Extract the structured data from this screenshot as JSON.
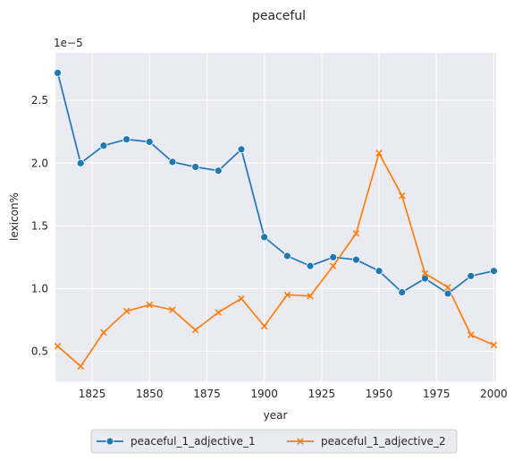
{
  "chart_data": {
    "type": "line",
    "title": "peaceful",
    "xlabel": "year",
    "ylabel": "lexicon%",
    "y_offset_label": "1e−5",
    "x": [
      1810,
      1820,
      1830,
      1840,
      1850,
      1860,
      1870,
      1880,
      1890,
      1900,
      1910,
      1920,
      1930,
      1940,
      1950,
      1960,
      1970,
      1980,
      1990,
      2000
    ],
    "xlim": [
      1809,
      2001
    ],
    "ylim": [
      0.26,
      2.88
    ],
    "x_ticks": [
      1825,
      1850,
      1875,
      1900,
      1925,
      1950,
      1975,
      2000
    ],
    "x_tick_labels": [
      "1825",
      "1850",
      "1875",
      "1900",
      "1925",
      "1950",
      "1975",
      "2000"
    ],
    "y_ticks": [
      0.5,
      1.0,
      1.5,
      2.0,
      2.5
    ],
    "y_tick_labels": [
      "0.5",
      "1.0",
      "1.5",
      "2.0",
      "2.5"
    ],
    "grid": true,
    "legend_position": "bottom-center",
    "series": [
      {
        "name": "peaceful_1_adjective_1",
        "color": "#1f77b4",
        "marker": "circle",
        "values": [
          2.72,
          2.0,
          2.14,
          2.19,
          2.17,
          2.01,
          1.97,
          1.94,
          2.11,
          1.41,
          1.26,
          1.18,
          1.25,
          1.23,
          1.14,
          0.97,
          1.08,
          0.96,
          1.1,
          1.14
        ]
      },
      {
        "name": "peaceful_1_adjective_2",
        "color": "#ff7f0e",
        "marker": "x",
        "values": [
          0.54,
          0.38,
          0.65,
          0.82,
          0.87,
          0.83,
          0.67,
          0.81,
          0.92,
          0.7,
          0.95,
          0.94,
          1.18,
          1.44,
          2.08,
          1.74,
          1.12,
          1.01,
          0.63,
          0.55
        ]
      }
    ]
  }
}
